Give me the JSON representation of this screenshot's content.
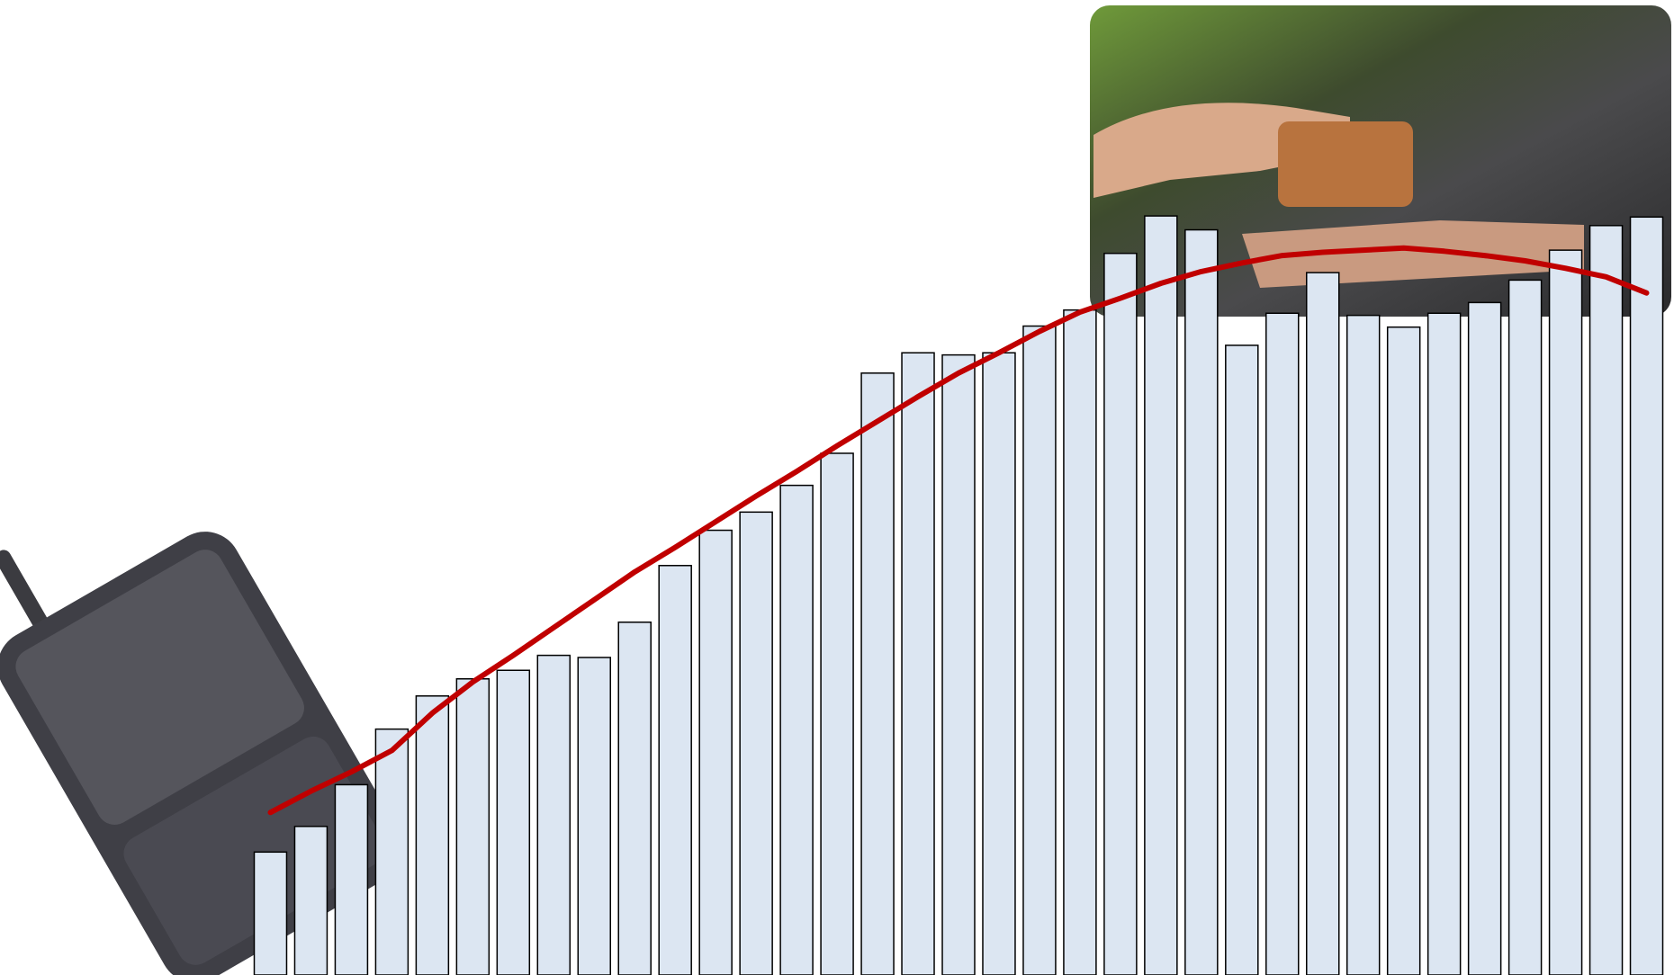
{
  "chart_data": {
    "type": "bar",
    "categories": [
      null,
      null,
      null,
      null,
      null,
      null,
      null,
      null,
      null,
      null,
      null,
      null,
      null,
      null,
      null,
      null,
      null,
      null,
      null,
      null,
      null,
      null,
      null,
      null,
      null,
      null,
      null,
      null,
      null,
      null,
      null,
      null,
      null,
      null,
      null
    ],
    "series": [
      {
        "type": "bar",
        "color": "#dce6f2",
        "values": [
          115,
          139,
          178,
          230,
          261,
          277,
          285,
          299,
          297,
          330,
          383,
          416,
          433,
          458,
          488,
          563,
          582,
          580,
          582,
          607,
          622,
          675,
          710,
          697,
          589,
          619,
          657,
          617,
          606,
          619,
          629,
          650,
          678,
          701,
          709
        ]
      },
      {
        "type": "line",
        "color": "#c00000",
        "values": [
          152,
          172,
          190,
          210,
          245,
          274,
          299,
          325,
          351,
          377,
          400,
          424,
          448,
          471,
          495,
          518,
          541,
          563,
          582,
          602,
          620,
          633,
          647,
          658,
          666,
          673,
          676,
          678,
          680,
          677,
          673,
          668,
          661,
          653,
          638
        ]
      }
    ],
    "ylim": [
      0,
      912
    ]
  }
}
